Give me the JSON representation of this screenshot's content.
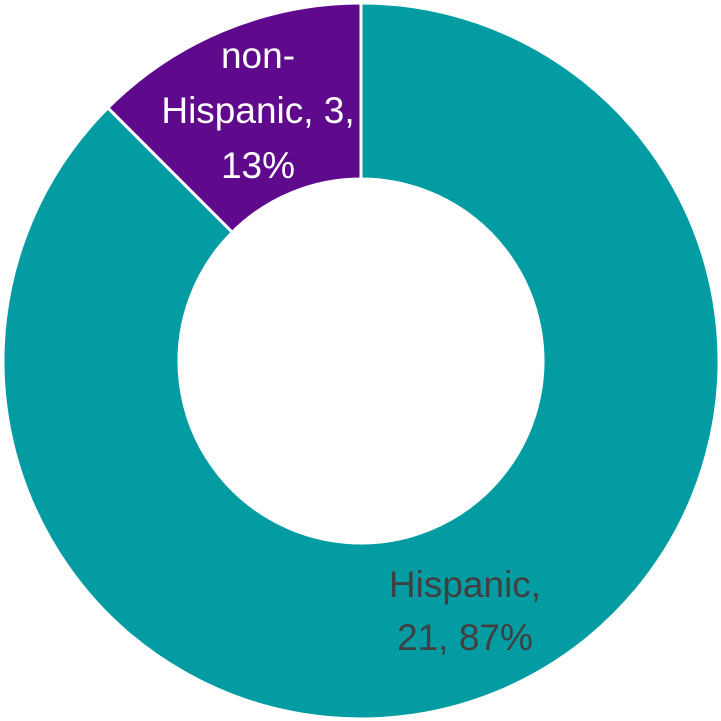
{
  "chart_data": {
    "type": "pie",
    "title": "",
    "donut": true,
    "series": [
      {
        "name": "",
        "slices": [
          {
            "label": "Hispanic",
            "value": 21,
            "percent": "87%",
            "color": "#049ca3",
            "label_color": "#404040",
            "label_lines": [
              "Hispanic,",
              "21, 87%"
            ]
          },
          {
            "label": "non-Hispanic",
            "value": 3,
            "percent": "13%",
            "color": "#5f0a8c",
            "label_color": "#ffffff",
            "label_lines": [
              "non-",
              "Hispanic, 3,",
              "13%"
            ]
          }
        ]
      }
    ],
    "legend": "none"
  }
}
